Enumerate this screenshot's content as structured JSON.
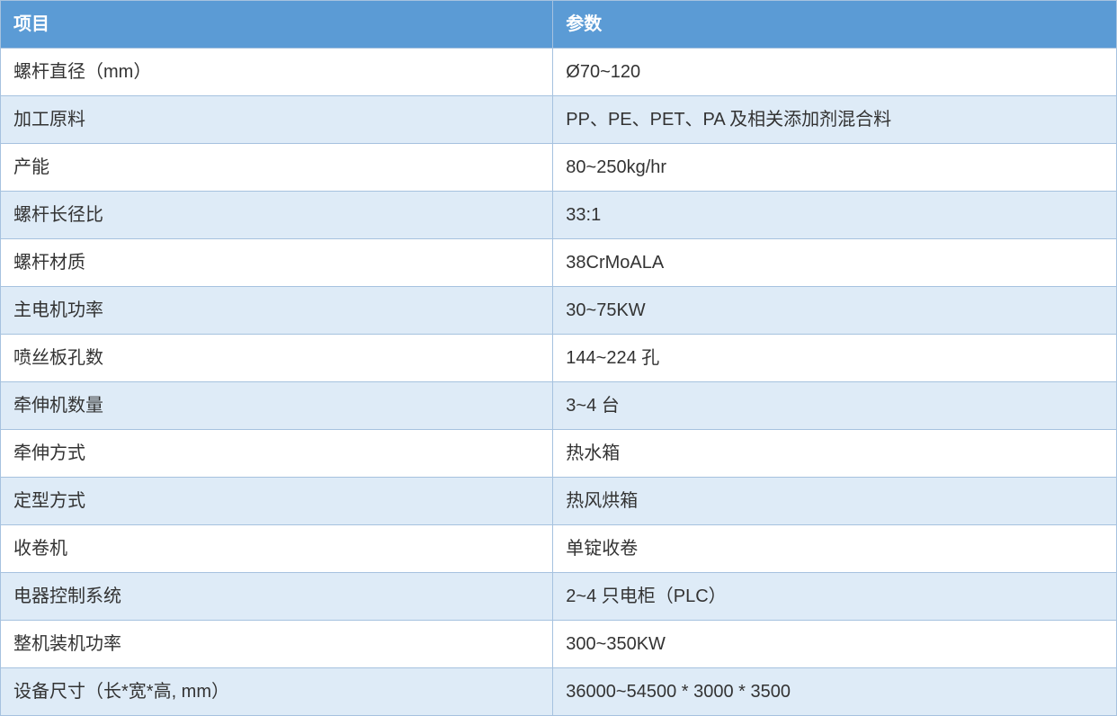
{
  "table": {
    "type": "table",
    "columns": [
      {
        "key": "item",
        "label": "项目",
        "width_pct": 49.5,
        "align": "left"
      },
      {
        "key": "param",
        "label": "参数",
        "width_pct": 50.5,
        "align": "left"
      }
    ],
    "header_bg": "#5b9bd5",
    "header_text_color": "#ffffff",
    "header_fontsize_pt": 15,
    "cell_fontsize_pt": 15,
    "cell_text_color": "#333333",
    "border_color": "#a6c2df",
    "row_alt_colors": [
      "#ffffff",
      "#deebf7"
    ],
    "rows": [
      {
        "item": "螺杆直径（mm）",
        "param": "Ø70~120"
      },
      {
        "item": "加工原料",
        "param": "PP、PE、PET、PA 及相关添加剂混合料"
      },
      {
        "item": "产能",
        "param": "80~250kg/hr"
      },
      {
        "item": "螺杆长径比",
        "param": "33:1"
      },
      {
        "item": "螺杆材质",
        "param": "38CrMoALA"
      },
      {
        "item": "主电机功率",
        "param": "30~75KW"
      },
      {
        "item": "喷丝板孔数",
        "param": "144~224 孔"
      },
      {
        "item": "牵伸机数量",
        "param": "3~4 台"
      },
      {
        "item": "牵伸方式",
        "param": "热水箱"
      },
      {
        "item": "定型方式",
        "param": "热风烘箱"
      },
      {
        "item": "收卷机",
        "param": "单锭收卷"
      },
      {
        "item": "电器控制系统",
        "param": "2~4 只电柜（PLC）"
      },
      {
        "item": "整机装机功率",
        "param": "300~350KW"
      },
      {
        "item": "设备尺寸（长*宽*高, mm）",
        "param": "36000~54500 * 3000 * 3500"
      }
    ]
  }
}
